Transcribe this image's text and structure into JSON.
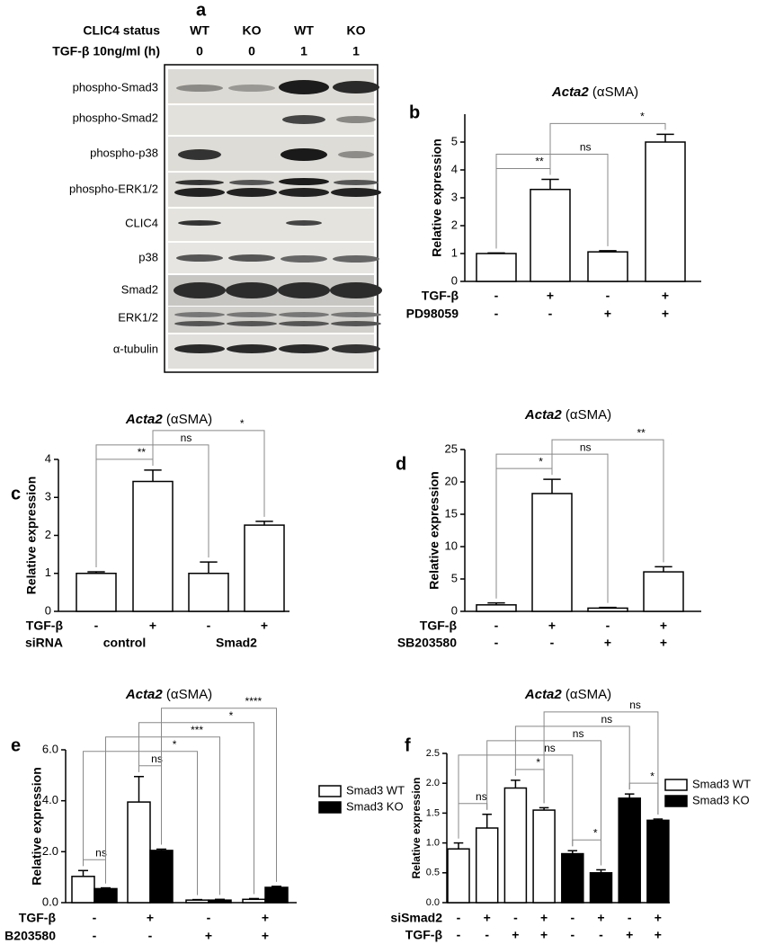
{
  "blot": {
    "panel": "a",
    "header": [
      {
        "label": "CLIC4 status",
        "lanes": [
          "WT",
          "KO",
          "WT",
          "KO"
        ]
      },
      {
        "label": "TGF-β 10ng/ml (h)",
        "lanes": [
          "0",
          "0",
          "1",
          "1"
        ]
      }
    ],
    "rows": [
      "phospho-Smad3",
      "phospho-Smad2",
      "phospho-p38",
      "phospho-ERK1/2",
      "CLIC4",
      "p38",
      "Smad2",
      "ERK1/2",
      "α-tubulin"
    ]
  },
  "chart_data": [
    {
      "type": "bar",
      "panel": "b",
      "title": "Acta2 (αSMA)",
      "y_label": "Relative expression",
      "color": "#ffffff",
      "values": [
        1,
        3.3,
        1.06,
        5.0
      ],
      "errors": [
        0.02,
        0.36,
        0.04,
        0.28
      ],
      "ylim": [
        0,
        6
      ],
      "yticks": [
        0,
        1,
        2,
        3,
        4,
        5
      ],
      "conditions": [
        {
          "label": "TGF-β",
          "marks": [
            "-",
            "+",
            "-",
            "+"
          ]
        },
        {
          "label": "PD98059",
          "marks": [
            "-",
            "-",
            "+",
            "+"
          ]
        }
      ],
      "annotations": [
        {
          "from": 0,
          "to": 1,
          "label": "**"
        },
        {
          "from": 0,
          "to": 2,
          "label": "ns"
        },
        {
          "from": 1,
          "to": 3,
          "label": "*"
        }
      ]
    },
    {
      "type": "bar",
      "panel": "c",
      "title": "Acta2 (αSMA)",
      "y_label": "Relative expression",
      "color": "#ffffff",
      "values": [
        1,
        3.42,
        1.0,
        2.27
      ],
      "errors": [
        0.04,
        0.3,
        0.3,
        0.1
      ],
      "ylim": [
        0,
        4
      ],
      "yticks": [
        0,
        1,
        2,
        3,
        4
      ],
      "conditions": [
        {
          "label": "TGF-β",
          "marks": [
            "-",
            "+",
            "-",
            "+"
          ]
        },
        {
          "label": "siRNA",
          "groups": [
            {
              "text": "control",
              "span": [
                0,
                1
              ]
            },
            {
              "text": "Smad2",
              "span": [
                2,
                3
              ]
            }
          ]
        }
      ],
      "annotations": [
        {
          "from": 0,
          "to": 1,
          "label": "**"
        },
        {
          "from": 0,
          "to": 2,
          "label": "ns"
        },
        {
          "from": 1,
          "to": 3,
          "label": "*"
        }
      ]
    },
    {
      "type": "bar",
      "panel": "d",
      "title": "Acta2 (αSMA)",
      "y_label": "Relative expression",
      "color": "#ffffff",
      "values": [
        1,
        18.2,
        0.5,
        6.1
      ],
      "errors": [
        0.3,
        2.2,
        0.1,
        0.8
      ],
      "ylim": [
        0,
        25
      ],
      "yticks": [
        0,
        5,
        10,
        15,
        20,
        25
      ],
      "conditions": [
        {
          "label": "TGF-β",
          "marks": [
            "-",
            "+",
            "-",
            "+"
          ]
        },
        {
          "label": "SB203580",
          "marks": [
            "-",
            "-",
            "+",
            "+"
          ]
        }
      ],
      "annotations": [
        {
          "from": 0,
          "to": 1,
          "label": "*"
        },
        {
          "from": 0,
          "to": 2,
          "label": "ns"
        },
        {
          "from": 1,
          "to": 3,
          "label": "**"
        }
      ]
    },
    {
      "type": "bar",
      "panel": "e",
      "title": "Acta2 (αSMA)",
      "y_label": "Relative expression",
      "grouped": true,
      "legend": "right",
      "series": [
        {
          "name": "Smad3 WT",
          "color": "#ffffff",
          "values": [
            1.03,
            3.95,
            0.1,
            0.13
          ],
          "errors": [
            0.23,
            1.0,
            0.02,
            0.03
          ]
        },
        {
          "name": "Smad3 KO",
          "color": "#000000",
          "values": [
            0.55,
            2.05,
            0.1,
            0.6
          ],
          "errors": [
            0.03,
            0.05,
            0.03,
            0.04
          ]
        }
      ],
      "ylim": [
        0,
        6
      ],
      "yticks": [
        {
          "value": 0,
          "label": "0.0"
        },
        {
          "value": 2,
          "label": "2.0"
        },
        {
          "value": 4,
          "label": "4.0"
        },
        {
          "value": 6,
          "label": "6.0"
        }
      ],
      "conditions": [
        {
          "label": "TGF-β",
          "marks": [
            "-",
            "+",
            "-",
            "+"
          ]
        },
        {
          "label": "B203580",
          "marks": [
            "-",
            "-",
            "+",
            "+"
          ]
        }
      ],
      "annotations": [
        {
          "from": [
            0,
            0
          ],
          "to": [
            1,
            0
          ],
          "label": "ns"
        },
        {
          "from": [
            0,
            1
          ],
          "to": [
            1,
            1
          ],
          "label": "ns"
        },
        {
          "from": [
            0,
            0
          ],
          "to": [
            0,
            2
          ],
          "label": "*"
        },
        {
          "from": [
            1,
            0
          ],
          "to": [
            1,
            2
          ],
          "label": "***"
        },
        {
          "from": [
            0,
            1
          ],
          "to": [
            0,
            3
          ],
          "label": "*"
        },
        {
          "from": [
            1,
            1
          ],
          "to": [
            1,
            3
          ],
          "label": "****"
        }
      ]
    },
    {
      "type": "bar",
      "panel": "f",
      "title": "Acta2 (αSMA)",
      "y_label": "Relative expression",
      "grouped": false,
      "legend": "right",
      "series": [
        {
          "name": "Smad3 WT",
          "color": "#ffffff",
          "values": [
            0.9,
            1.25,
            1.92,
            1.55,
            null,
            null,
            null,
            null
          ],
          "errors": [
            0.1,
            0.23,
            0.13,
            0.04,
            null,
            null,
            null,
            null
          ]
        },
        {
          "name": "Smad3 KO",
          "color": "#000000",
          "values": [
            null,
            null,
            null,
            null,
            0.82,
            0.5,
            1.75,
            1.38
          ],
          "errors": [
            null,
            null,
            null,
            null,
            0.05,
            0.05,
            0.07,
            0.02
          ]
        }
      ],
      "ylim": [
        0,
        2.5
      ],
      "yticks": [
        {
          "value": 0,
          "label": "0.0"
        },
        {
          "value": 0.5,
          "label": "0.5"
        },
        {
          "value": 1,
          "label": "1.0"
        },
        {
          "value": 1.5,
          "label": "1.5"
        },
        {
          "value": 2,
          "label": "2.0"
        },
        {
          "value": 2.5,
          "label": "2.5"
        }
      ],
      "conditions": [
        {
          "label": "siSmad2",
          "marks": [
            "-",
            "+",
            "-",
            "+",
            "-",
            "+",
            "-",
            "+"
          ]
        },
        {
          "label": "TGF-β",
          "marks": [
            "-",
            "-",
            "+",
            "+",
            "-",
            "-",
            "+",
            "+"
          ]
        }
      ],
      "annotations": [
        {
          "from": [
            0,
            0
          ],
          "to": [
            0,
            1
          ],
          "label": "ns"
        },
        {
          "from": [
            0,
            2
          ],
          "to": [
            0,
            3
          ],
          "label": "*"
        },
        {
          "from": [
            1,
            4
          ],
          "to": [
            1,
            5
          ],
          "label": "*"
        },
        {
          "from": [
            1,
            6
          ],
          "to": [
            1,
            7
          ],
          "label": "*"
        },
        {
          "from": [
            0,
            0
          ],
          "to": [
            1,
            4
          ],
          "label": "ns"
        },
        {
          "from": [
            0,
            1
          ],
          "to": [
            1,
            5
          ],
          "label": "ns"
        },
        {
          "from": [
            0,
            2
          ],
          "to": [
            1,
            6
          ],
          "label": "ns"
        },
        {
          "from": [
            0,
            3
          ],
          "to": [
            1,
            7
          ],
          "label": "ns"
        }
      ]
    }
  ]
}
